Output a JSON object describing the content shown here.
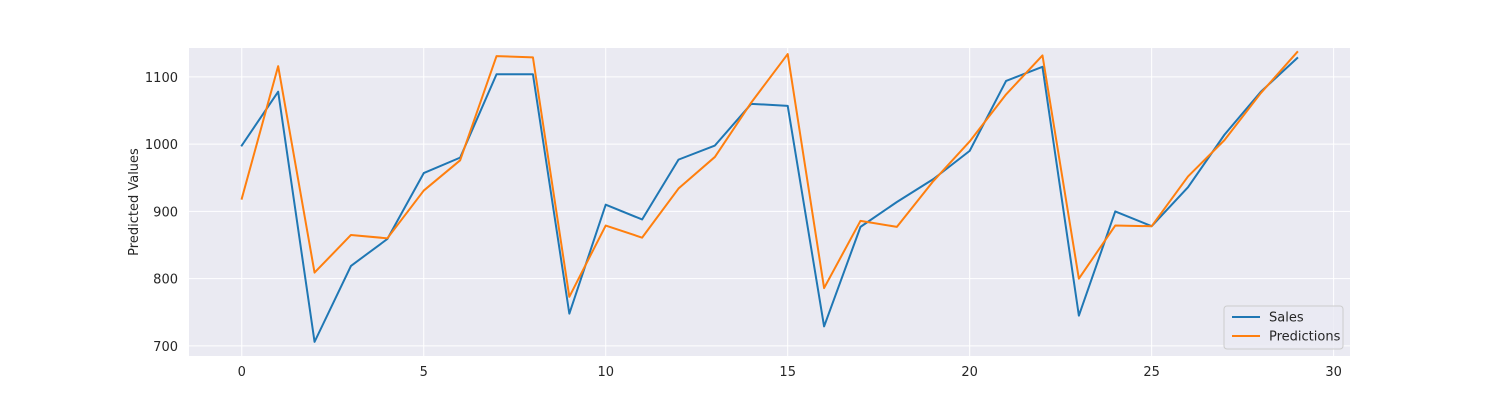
{
  "chart_data": {
    "type": "line",
    "title": "",
    "xlabel": "",
    "ylabel": "Predicted Values",
    "xlim": [
      -1.45,
      30.45
    ],
    "ylim": [
      685,
      1143
    ],
    "xticks": [
      0,
      5,
      10,
      15,
      20,
      25,
      30
    ],
    "yticks": [
      700,
      800,
      900,
      1000,
      1100
    ],
    "grid": true,
    "legend_position": "lower-right",
    "x": [
      0,
      1,
      2,
      3,
      4,
      5,
      6,
      7,
      8,
      9,
      10,
      11,
      12,
      13,
      14,
      15,
      16,
      17,
      18,
      19,
      20,
      21,
      22,
      23,
      24,
      25,
      26,
      27,
      28,
      29
    ],
    "series": [
      {
        "name": "Sales",
        "color": "#1f77b4",
        "values": [
          998,
          1078,
          706,
          819,
          859,
          957,
          980,
          1104,
          1104,
          748,
          910,
          888,
          977,
          998,
          1060,
          1057,
          729,
          877,
          914,
          948,
          990,
          1094,
          1115,
          745,
          900,
          878,
          936,
          1014,
          1078,
          1128
        ]
      },
      {
        "name": "Predictions",
        "color": "#ff7f0e",
        "values": [
          919,
          1116,
          809,
          865,
          860,
          931,
          976,
          1131,
          1129,
          773,
          879,
          861,
          934,
          981,
          1062,
          1134,
          786,
          886,
          877,
          945,
          1004,
          1074,
          1132,
          800,
          879,
          878,
          952,
          1006,
          1076,
          1137
        ]
      }
    ]
  }
}
